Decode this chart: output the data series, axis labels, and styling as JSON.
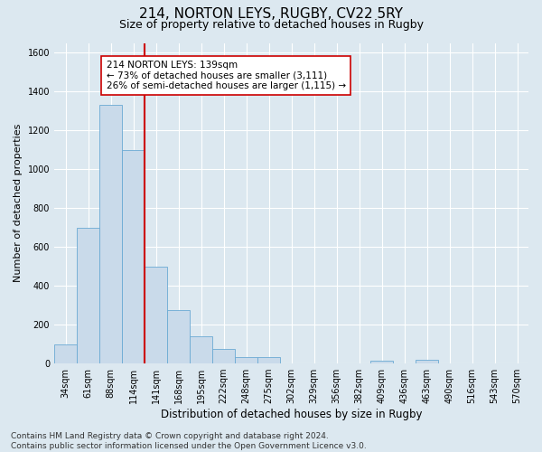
{
  "title": "214, NORTON LEYS, RUGBY, CV22 5RY",
  "subtitle": "Size of property relative to detached houses in Rugby",
  "xlabel": "Distribution of detached houses by size in Rugby",
  "ylabel": "Number of detached properties",
  "footer": "Contains HM Land Registry data © Crown copyright and database right 2024.\nContains public sector information licensed under the Open Government Licence v3.0.",
  "bar_labels": [
    "34sqm",
    "61sqm",
    "88sqm",
    "114sqm",
    "141sqm",
    "168sqm",
    "195sqm",
    "222sqm",
    "248sqm",
    "275sqm",
    "302sqm",
    "329sqm",
    "356sqm",
    "382sqm",
    "409sqm",
    "436sqm",
    "463sqm",
    "490sqm",
    "516sqm",
    "543sqm",
    "570sqm"
  ],
  "bar_values": [
    100,
    700,
    1330,
    1100,
    500,
    275,
    140,
    75,
    35,
    35,
    0,
    0,
    0,
    0,
    15,
    0,
    20,
    0,
    0,
    0,
    0
  ],
  "bar_color": "#c9daea",
  "bar_edgecolor": "#6aaad4",
  "vline_x_index": 4,
  "vline_color": "#cc0000",
  "annotation_text": "214 NORTON LEYS: 139sqm\n← 73% of detached houses are smaller (3,111)\n26% of semi-detached houses are larger (1,115) →",
  "annotation_box_facecolor": "white",
  "annotation_box_edgecolor": "#cc0000",
  "ylim": [
    0,
    1650
  ],
  "yticks": [
    0,
    200,
    400,
    600,
    800,
    1000,
    1200,
    1400,
    1600
  ],
  "background_color": "#dce8f0",
  "plot_background_color": "#dce8f0",
  "grid_color": "white",
  "title_fontsize": 11,
  "subtitle_fontsize": 9,
  "ylabel_fontsize": 8,
  "xlabel_fontsize": 8.5,
  "tick_fontsize": 7,
  "annotation_fontsize": 7.5,
  "footer_fontsize": 6.5
}
